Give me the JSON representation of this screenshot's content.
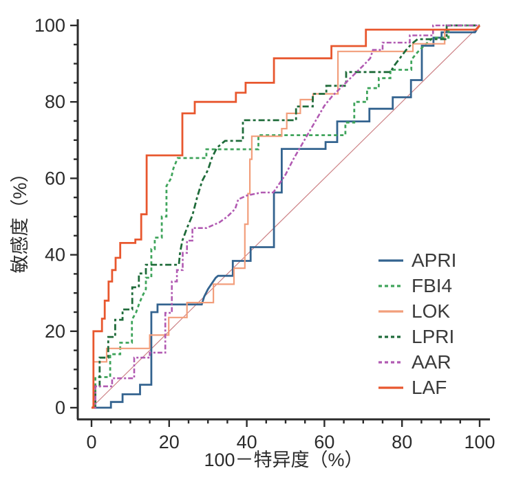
{
  "figure": {
    "background": "#ffffff",
    "axis_color": "#2b2b2b",
    "tick_label_color": "#2b2b2b",
    "label_color": "#2b2b2b"
  },
  "chart_data": {
    "type": "line",
    "subtype": "roc-step-curves",
    "title": "",
    "xlabel": "100－特异度（%）",
    "ylabel": "敏感度（%）",
    "xlim": [
      0,
      100
    ],
    "ylim": [
      0,
      100
    ],
    "x_ticks": [
      0,
      20,
      40,
      60,
      80,
      100
    ],
    "y_ticks": [
      0,
      20,
      40,
      60,
      80,
      100
    ],
    "minor_tick_step": 5,
    "grid": false,
    "legend_position": "lower-right",
    "reference_line": {
      "name": "chance-diagonal",
      "from": [
        0,
        0
      ],
      "to": [
        100,
        100
      ],
      "color": "#cc8084",
      "width": 1.2
    },
    "series": [
      {
        "name": "APRI",
        "color": "#33638f",
        "style": "solid",
        "width": 2.8,
        "points": [
          [
            0,
            0
          ],
          [
            5,
            0
          ],
          [
            5,
            1.5
          ],
          [
            8,
            1.5
          ],
          [
            8,
            3.5
          ],
          [
            12.5,
            3.5
          ],
          [
            12.5,
            6
          ],
          [
            15.4,
            6
          ],
          [
            15.4,
            25
          ],
          [
            17,
            25
          ],
          [
            17,
            27
          ],
          [
            28.4,
            27
          ],
          [
            29,
            29
          ],
          [
            30,
            31
          ],
          [
            31,
            32.5
          ],
          [
            32,
            34
          ],
          [
            32.6,
            34.5
          ],
          [
            36.4,
            34.5
          ],
          [
            36.4,
            38.4
          ],
          [
            41,
            38.4
          ],
          [
            41,
            42
          ],
          [
            47,
            42
          ],
          [
            47,
            56.3
          ],
          [
            49,
            56.3
          ],
          [
            49,
            67.7
          ],
          [
            60.3,
            67.7
          ],
          [
            60.3,
            69.5
          ],
          [
            63.3,
            69.5
          ],
          [
            63.3,
            74.9
          ],
          [
            71.6,
            74.9
          ],
          [
            71.6,
            78.2
          ],
          [
            77.6,
            78.2
          ],
          [
            77.6,
            81.2
          ],
          [
            82.3,
            81.2
          ],
          [
            82.3,
            85.7
          ],
          [
            85.1,
            85.7
          ],
          [
            85.1,
            94.7
          ],
          [
            88.1,
            94.7
          ],
          [
            88.1,
            96.8
          ],
          [
            90.2,
            96.8
          ],
          [
            90.2,
            98.2
          ],
          [
            98.8,
            98.2
          ],
          [
            100,
            100
          ]
        ]
      },
      {
        "name": "FBI4",
        "color": "#3fa45b",
        "style": "dashed",
        "dash": "5 4",
        "width": 2.8,
        "points": [
          [
            0,
            0
          ],
          [
            1,
            0
          ],
          [
            1,
            8
          ],
          [
            4.8,
            8
          ],
          [
            4.8,
            14
          ],
          [
            7.4,
            14
          ],
          [
            7.4,
            17
          ],
          [
            10.4,
            17
          ],
          [
            10.4,
            23
          ],
          [
            11.5,
            25
          ],
          [
            12.2,
            27
          ],
          [
            13,
            29
          ],
          [
            14,
            31
          ],
          [
            14,
            34
          ],
          [
            15.4,
            34
          ],
          [
            15.4,
            41.5
          ],
          [
            16.3,
            41.5
          ],
          [
            16.3,
            44.5
          ],
          [
            18.1,
            44.5
          ],
          [
            18.1,
            50
          ],
          [
            19.3,
            50
          ],
          [
            19.3,
            58
          ],
          [
            20.5,
            60
          ],
          [
            21.1,
            62.6
          ],
          [
            22.2,
            65.3
          ],
          [
            29.6,
            65.3
          ],
          [
            29.6,
            67.6
          ],
          [
            43,
            67.6
          ],
          [
            43,
            71.3
          ],
          [
            65.4,
            71.3
          ],
          [
            65.4,
            74.6
          ],
          [
            67.7,
            74.6
          ],
          [
            67.7,
            80
          ],
          [
            71,
            80
          ],
          [
            71,
            83.6
          ],
          [
            74,
            83.6
          ],
          [
            74,
            86.2
          ],
          [
            77,
            86.2
          ],
          [
            77,
            88.4
          ],
          [
            82.4,
            88.4
          ],
          [
            82.4,
            91
          ],
          [
            84,
            93
          ],
          [
            86,
            95
          ],
          [
            88,
            96.8
          ],
          [
            92,
            96.8
          ],
          [
            92,
            100
          ],
          [
            100,
            100
          ]
        ]
      },
      {
        "name": "LOK",
        "color": "#f29e7b",
        "style": "solid",
        "width": 2.2,
        "points": [
          [
            0,
            0
          ],
          [
            0.5,
            0
          ],
          [
            0.5,
            12
          ],
          [
            3.9,
            12
          ],
          [
            3.9,
            15.5
          ],
          [
            15,
            15.5
          ],
          [
            15,
            19
          ],
          [
            19.9,
            19
          ],
          [
            19.9,
            23.6
          ],
          [
            24.6,
            23.6
          ],
          [
            24.6,
            27.5
          ],
          [
            31.4,
            27.5
          ],
          [
            31.4,
            32.3
          ],
          [
            36.7,
            32.3
          ],
          [
            36.7,
            36.5
          ],
          [
            39.5,
            36.5
          ],
          [
            39.5,
            48
          ],
          [
            40.3,
            48
          ],
          [
            40.3,
            56
          ],
          [
            40.8,
            56
          ],
          [
            40.8,
            65
          ],
          [
            41.3,
            65
          ],
          [
            41.3,
            71
          ],
          [
            49,
            71
          ],
          [
            49,
            73
          ],
          [
            50.3,
            73
          ],
          [
            50.3,
            77
          ],
          [
            53.8,
            77
          ],
          [
            53.8,
            80.6
          ],
          [
            57.1,
            80.6
          ],
          [
            57.1,
            82.1
          ],
          [
            63.5,
            82.1
          ],
          [
            63.5,
            93.2
          ],
          [
            82.8,
            93.2
          ],
          [
            82.8,
            95.2
          ],
          [
            91,
            95.2
          ],
          [
            91,
            98.9
          ],
          [
            99.3,
            98.9
          ],
          [
            100,
            100
          ]
        ]
      },
      {
        "name": "LPRI",
        "color": "#1f6b3a",
        "style": "dashed",
        "dash": "9 4 4 4",
        "width": 2.8,
        "points": [
          [
            0,
            0
          ],
          [
            1,
            0
          ],
          [
            1,
            5.6
          ],
          [
            2.1,
            5.6
          ],
          [
            2.1,
            13.1
          ],
          [
            4.3,
            13.1
          ],
          [
            4.3,
            18.5
          ],
          [
            6.1,
            18.5
          ],
          [
            6.1,
            23
          ],
          [
            8,
            23
          ],
          [
            8,
            25.7
          ],
          [
            10.5,
            25.7
          ],
          [
            10.5,
            31.5
          ],
          [
            12.2,
            31.5
          ],
          [
            12.2,
            35.1
          ],
          [
            14,
            35.1
          ],
          [
            14,
            37.4
          ],
          [
            22.5,
            37.4
          ],
          [
            22.8,
            40.5
          ],
          [
            23.4,
            43.7
          ],
          [
            24.6,
            47
          ],
          [
            26,
            50.3
          ],
          [
            27.2,
            55
          ],
          [
            28.5,
            59.3
          ],
          [
            30,
            62.2
          ],
          [
            31,
            65.3
          ],
          [
            32.3,
            68
          ],
          [
            34.4,
            69.8
          ],
          [
            39,
            69.8
          ],
          [
            39,
            75.2
          ],
          [
            52.7,
            75.2
          ],
          [
            52.7,
            78.8
          ],
          [
            57,
            78.8
          ],
          [
            57,
            82.1
          ],
          [
            60.5,
            82.1
          ],
          [
            60.5,
            84.2
          ],
          [
            65.6,
            84.2
          ],
          [
            65.6,
            87.8
          ],
          [
            77,
            87.8
          ],
          [
            78,
            89.5
          ],
          [
            79.5,
            91.5
          ],
          [
            81,
            93.5
          ],
          [
            82.5,
            95.2
          ],
          [
            84,
            96.4
          ],
          [
            91.5,
            96.4
          ],
          [
            91.5,
            100
          ],
          [
            100,
            100
          ]
        ]
      },
      {
        "name": "AAR",
        "color": "#b15ab2",
        "style": "dashed",
        "dash": "7 3 3 3",
        "width": 2.6,
        "points": [
          [
            0,
            0
          ],
          [
            1,
            0
          ],
          [
            1,
            5.6
          ],
          [
            5.3,
            5.6
          ],
          [
            5.3,
            7.7
          ],
          [
            11,
            7.7
          ],
          [
            11,
            13.1
          ],
          [
            15,
            13.1
          ],
          [
            15,
            14.4
          ],
          [
            19,
            14.4
          ],
          [
            19,
            24.8
          ],
          [
            20.7,
            24.8
          ],
          [
            20.7,
            33
          ],
          [
            22,
            33
          ],
          [
            22,
            36
          ],
          [
            23.5,
            36
          ],
          [
            23.5,
            40.5
          ],
          [
            24.6,
            40.5
          ],
          [
            24.6,
            43.7
          ],
          [
            26,
            43.7
          ],
          [
            26,
            47
          ],
          [
            29.6,
            47
          ],
          [
            33,
            48.5
          ],
          [
            35,
            50
          ],
          [
            37,
            52
          ],
          [
            37.8,
            54.5
          ],
          [
            40,
            55.5
          ],
          [
            43.8,
            56.3
          ],
          [
            46.8,
            56.3
          ],
          [
            48,
            58
          ],
          [
            50,
            61
          ],
          [
            52,
            65
          ],
          [
            54,
            68.5
          ],
          [
            56,
            72
          ],
          [
            58,
            75.5
          ],
          [
            60,
            79
          ],
          [
            62,
            81.5
          ],
          [
            63.8,
            83.3
          ],
          [
            66,
            85.5
          ],
          [
            68,
            87.5
          ],
          [
            70,
            89.5
          ],
          [
            71.8,
            91.4
          ],
          [
            72.5,
            93.6
          ],
          [
            75,
            93.6
          ],
          [
            75,
            95.5
          ],
          [
            82,
            95.5
          ],
          [
            82,
            97.4
          ],
          [
            88,
            97.4
          ],
          [
            88,
            100
          ],
          [
            100,
            100
          ]
        ]
      },
      {
        "name": "LAF",
        "color": "#e8572e",
        "style": "solid",
        "width": 2.8,
        "points": [
          [
            0,
            0
          ],
          [
            0.5,
            0
          ],
          [
            0.5,
            20
          ],
          [
            2.7,
            20
          ],
          [
            2.7,
            23.3
          ],
          [
            3.4,
            23.3
          ],
          [
            3.4,
            28
          ],
          [
            4.4,
            28
          ],
          [
            4.4,
            33
          ],
          [
            5.3,
            33
          ],
          [
            5.3,
            36
          ],
          [
            6.2,
            36
          ],
          [
            6.2,
            39.2
          ],
          [
            7.4,
            39.2
          ],
          [
            7.4,
            43.1
          ],
          [
            11.3,
            43.1
          ],
          [
            11.3,
            44
          ],
          [
            12.8,
            44
          ],
          [
            12.8,
            50.6
          ],
          [
            14.2,
            50.6
          ],
          [
            14.2,
            66
          ],
          [
            23.4,
            66
          ],
          [
            23.4,
            77
          ],
          [
            26.6,
            77
          ],
          [
            26.6,
            80
          ],
          [
            37.2,
            80
          ],
          [
            37.2,
            82.4
          ],
          [
            39.7,
            82.4
          ],
          [
            39.7,
            85
          ],
          [
            47,
            85
          ],
          [
            47,
            91.4
          ],
          [
            61.8,
            91.4
          ],
          [
            61.8,
            94.6
          ],
          [
            70.7,
            94.6
          ],
          [
            70.7,
            98.9
          ],
          [
            99,
            98.9
          ],
          [
            100,
            100
          ]
        ]
      }
    ]
  }
}
